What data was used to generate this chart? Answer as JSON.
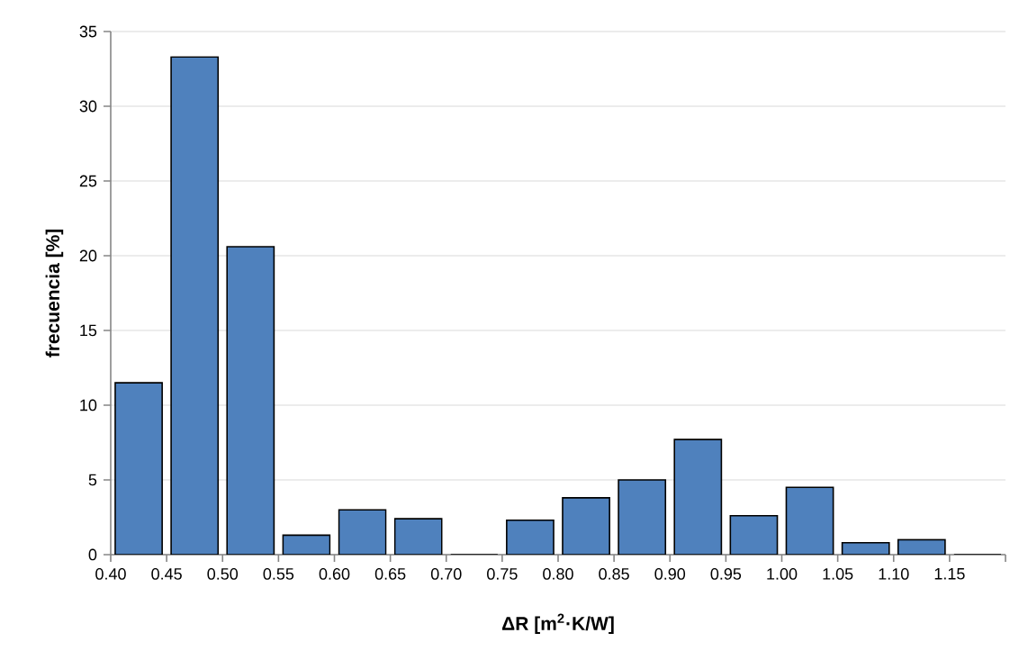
{
  "chart_data": {
    "type": "histogram",
    "xlabel": "ΔR [m$^{2}$·K/W]",
    "ylabel": "frecuencia [%]",
    "bins": [
      0.4,
      0.45,
      0.5,
      0.55,
      0.6,
      0.65,
      0.7,
      0.75,
      0.8,
      0.85,
      0.9,
      0.95,
      1.0,
      1.05,
      1.1,
      1.15,
      1.2
    ],
    "values": [
      11.5,
      33.3,
      20.6,
      1.3,
      3.0,
      2.4,
      0,
      2.3,
      3.8,
      5.0,
      7.7,
      2.6,
      4.5,
      0.8,
      1.0,
      0
    ],
    "color": "#4f81bd",
    "xlim": [
      0.4,
      1.2
    ],
    "xticks": [
      {
        "value": 0.4,
        "label": "0.40"
      },
      {
        "value": 0.45,
        "label": "0.45"
      },
      {
        "value": 0.5,
        "label": "0.50"
      },
      {
        "value": 0.55,
        "label": "0.55"
      },
      {
        "value": 0.6,
        "label": "0.60"
      },
      {
        "value": 0.65,
        "label": "0.65"
      },
      {
        "value": 0.7,
        "label": "0.70"
      },
      {
        "value": 0.75,
        "label": "0.75"
      },
      {
        "value": 0.8,
        "label": "0.80"
      },
      {
        "value": 0.85,
        "label": "0.85"
      },
      {
        "value": 0.9,
        "label": "0.90"
      },
      {
        "value": 0.95,
        "label": "0.95"
      },
      {
        "value": 1.0,
        "label": "1.00"
      },
      {
        "value": 1.05,
        "label": "1.05"
      },
      {
        "value": 1.1,
        "label": "1.10"
      },
      {
        "value": 1.15,
        "label": "1.15"
      },
      {
        "value": 1.2,
        "label": null
      }
    ],
    "ylim": [
      0,
      35
    ],
    "yticks": [
      0,
      5,
      10,
      15,
      20,
      25,
      30,
      35
    ],
    "grid": "y"
  }
}
